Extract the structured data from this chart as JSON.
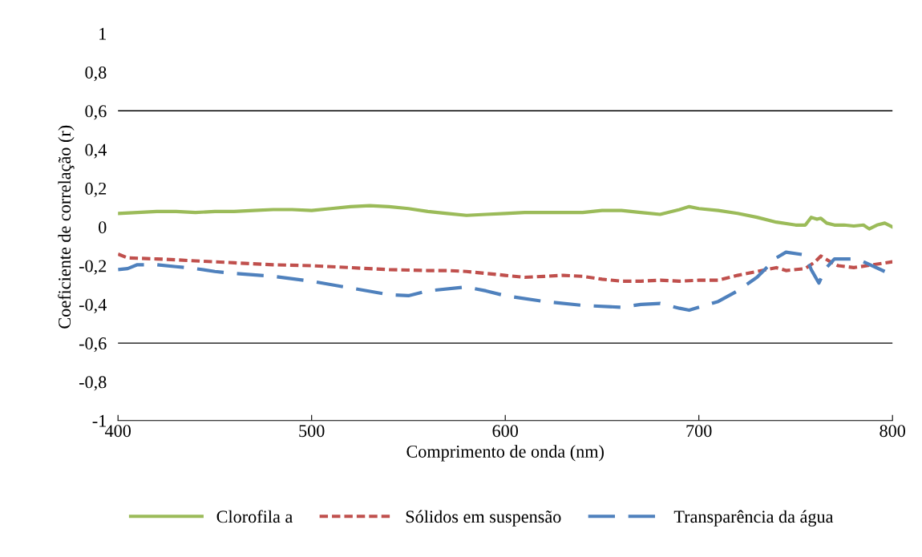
{
  "chart_data": {
    "type": "line",
    "xlabel": "Comprimento de onda (nm)",
    "ylabel": "Coeficiente de correlação (r)",
    "xlim": [
      400,
      800
    ],
    "xticks": [
      400,
      500,
      600,
      700,
      800
    ],
    "ylim": [
      -1,
      1
    ],
    "yticks": [
      {
        "value": 1,
        "label": "1"
      },
      {
        "value": 0.8,
        "label": "0,8"
      },
      {
        "value": 0.6,
        "label": "0,6"
      },
      {
        "value": 0.4,
        "label": "0,4"
      },
      {
        "value": 0.2,
        "label": "0,2"
      },
      {
        "value": 0,
        "label": "0"
      },
      {
        "value": -0.2,
        "label": "-0,2"
      },
      {
        "value": -0.4,
        "label": "-0,4"
      },
      {
        "value": -0.6,
        "label": "-0,6"
      },
      {
        "value": -0.8,
        "label": "-0,8"
      },
      {
        "value": -1,
        "label": "-1"
      }
    ],
    "grid": false,
    "legend": "bottom",
    "ref_lines": [
      {
        "axis": "y",
        "value": 0.6,
        "color": "#000000"
      },
      {
        "axis": "y",
        "value": -0.6,
        "color": "#000000"
      }
    ],
    "series": [
      {
        "name": "Clorofila a",
        "color": "#9bbb59",
        "line_style": "solid",
        "x": [
          400,
          410,
          420,
          430,
          440,
          450,
          460,
          470,
          480,
          490,
          500,
          510,
          520,
          530,
          540,
          550,
          560,
          570,
          580,
          590,
          600,
          610,
          620,
          630,
          640,
          650,
          660,
          670,
          680,
          690,
          695,
          700,
          710,
          720,
          730,
          740,
          750,
          755,
          758,
          761,
          763,
          766,
          770,
          775,
          780,
          785,
          788,
          792,
          796,
          800
        ],
        "values": [
          0.07,
          0.075,
          0.08,
          0.08,
          0.075,
          0.08,
          0.08,
          0.085,
          0.09,
          0.09,
          0.085,
          0.095,
          0.105,
          0.11,
          0.105,
          0.095,
          0.08,
          0.07,
          0.06,
          0.065,
          0.07,
          0.075,
          0.075,
          0.075,
          0.075,
          0.085,
          0.085,
          0.075,
          0.065,
          0.09,
          0.105,
          0.095,
          0.085,
          0.07,
          0.05,
          0.025,
          0.01,
          0.01,
          0.05,
          0.04,
          0.045,
          0.02,
          0.01,
          0.01,
          0.005,
          0.01,
          -0.01,
          0.01,
          0.02,
          0.0
        ]
      },
      {
        "name": "Sólidos em suspensão",
        "color": "#c0504d",
        "line_style": "dotted",
        "x": [
          400,
          405,
          420,
          440,
          460,
          480,
          500,
          520,
          540,
          560,
          570,
          580,
          590,
          600,
          610,
          620,
          630,
          640,
          650,
          660,
          670,
          680,
          690,
          700,
          710,
          720,
          730,
          740,
          745,
          755,
          760,
          763,
          768,
          772,
          780,
          790,
          800
        ],
        "values": [
          -0.14,
          -0.16,
          -0.165,
          -0.175,
          -0.185,
          -0.195,
          -0.2,
          -0.21,
          -0.22,
          -0.225,
          -0.225,
          -0.23,
          -0.24,
          -0.25,
          -0.26,
          -0.255,
          -0.25,
          -0.255,
          -0.27,
          -0.28,
          -0.28,
          -0.275,
          -0.28,
          -0.275,
          -0.275,
          -0.25,
          -0.23,
          -0.21,
          -0.225,
          -0.215,
          -0.18,
          -0.15,
          -0.18,
          -0.2,
          -0.21,
          -0.195,
          -0.18
        ]
      },
      {
        "name": "Transparência da água",
        "color": "#4f81bd",
        "line_style": "dashed",
        "x": [
          400,
          405,
          410,
          420,
          430,
          440,
          450,
          460,
          480,
          500,
          520,
          540,
          550,
          560,
          580,
          590,
          600,
          620,
          640,
          660,
          670,
          680,
          690,
          695,
          710,
          720,
          730,
          740,
          745,
          755,
          758,
          762,
          765,
          770,
          780,
          785,
          796
        ],
        "values": [
          -0.22,
          -0.215,
          -0.195,
          -0.195,
          -0.205,
          -0.215,
          -0.23,
          -0.24,
          -0.255,
          -0.28,
          -0.315,
          -0.35,
          -0.355,
          -0.33,
          -0.31,
          -0.33,
          -0.355,
          -0.385,
          -0.405,
          -0.415,
          -0.4,
          -0.395,
          -0.42,
          -0.43,
          -0.385,
          -0.33,
          -0.26,
          -0.16,
          -0.13,
          -0.145,
          -0.22,
          -0.29,
          -0.22,
          -0.165,
          -0.165,
          -0.18,
          -0.23
        ]
      }
    ]
  }
}
